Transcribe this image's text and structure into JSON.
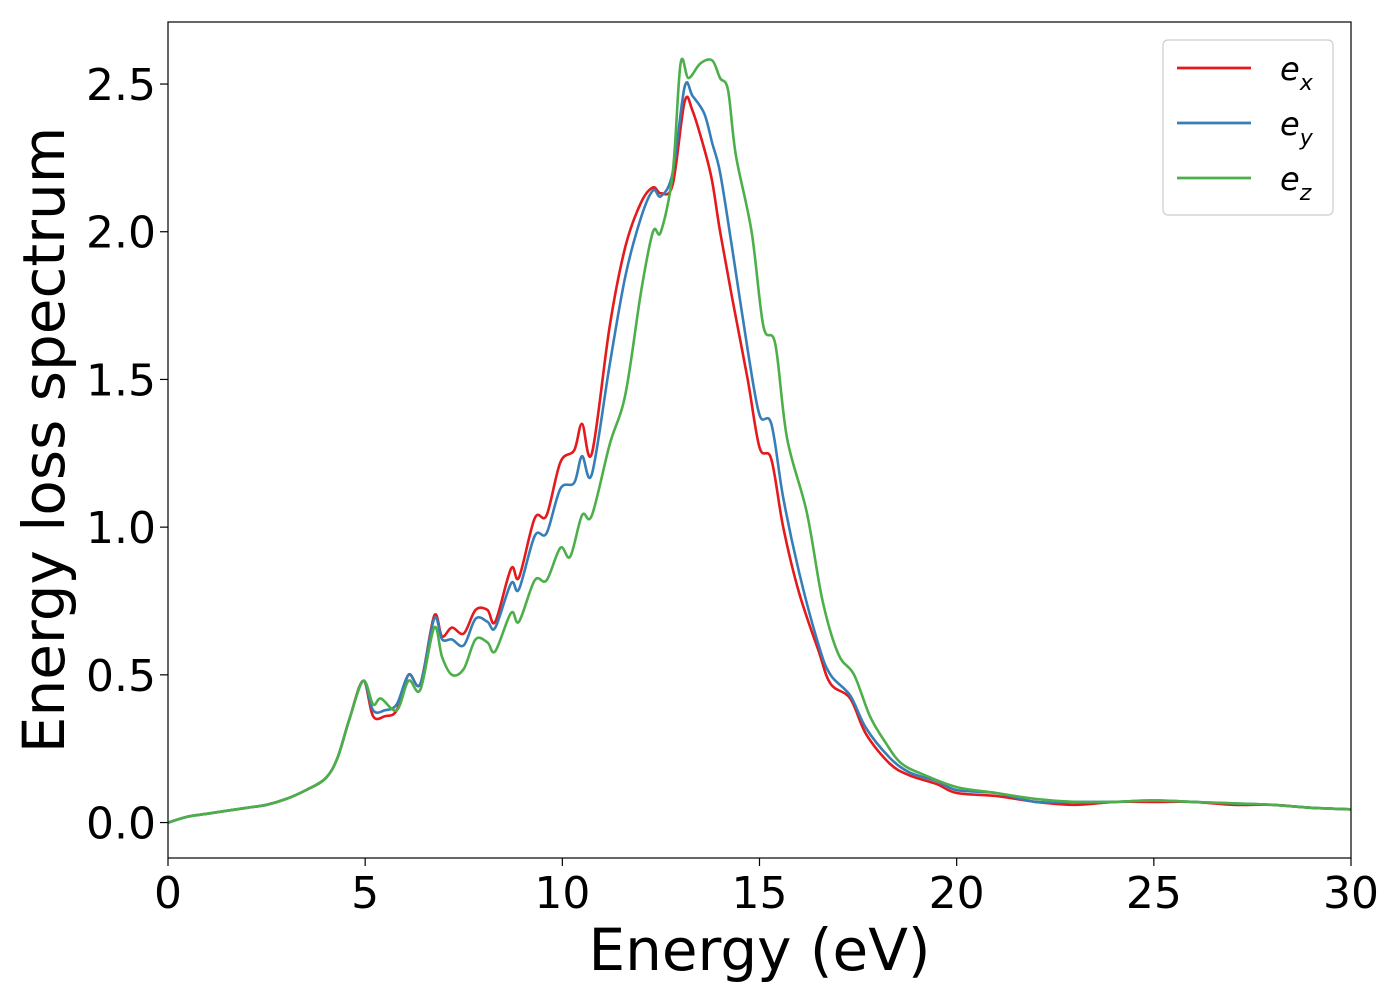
{
  "chart_data": {
    "type": "line",
    "xlabel": "Energy (eV)",
    "ylabel": "Energy loss spectrum",
    "xlim": [
      0,
      30
    ],
    "ylim": [
      -0.12,
      2.71
    ],
    "xticks": [
      0,
      5,
      10,
      15,
      20,
      25,
      30
    ],
    "xtick_labels": [
      "0",
      "5",
      "10",
      "15",
      "20",
      "25",
      "30"
    ],
    "yticks": [
      0.0,
      0.5,
      1.0,
      1.5,
      2.0,
      2.5
    ],
    "ytick_labels": [
      "0.0",
      "0.5",
      "1.0",
      "1.5",
      "2.0",
      "2.5"
    ],
    "grid": false,
    "legend_position": "top-right",
    "series": [
      {
        "name": "e_x",
        "label_base": "e",
        "label_sub": "x",
        "color": "#e41a1c",
        "points": [
          [
            0,
            0
          ],
          [
            0.5,
            0.02
          ],
          [
            1,
            0.03
          ],
          [
            1.5,
            0.04
          ],
          [
            2,
            0.05
          ],
          [
            2.5,
            0.06
          ],
          [
            3,
            0.08
          ],
          [
            3.5,
            0.11
          ],
          [
            4,
            0.15
          ],
          [
            4.3,
            0.22
          ],
          [
            4.6,
            0.35
          ],
          [
            4.95,
            0.48
          ],
          [
            5.2,
            0.36
          ],
          [
            5.5,
            0.36
          ],
          [
            5.8,
            0.38
          ],
          [
            6.1,
            0.5
          ],
          [
            6.4,
            0.47
          ],
          [
            6.75,
            0.7
          ],
          [
            6.95,
            0.63
          ],
          [
            7.2,
            0.66
          ],
          [
            7.5,
            0.64
          ],
          [
            7.8,
            0.72
          ],
          [
            8.1,
            0.72
          ],
          [
            8.3,
            0.68
          ],
          [
            8.7,
            0.86
          ],
          [
            8.9,
            0.83
          ],
          [
            9.3,
            1.03
          ],
          [
            9.6,
            1.04
          ],
          [
            9.95,
            1.22
          ],
          [
            10.3,
            1.26
          ],
          [
            10.5,
            1.35
          ],
          [
            10.75,
            1.25
          ],
          [
            11.2,
            1.68
          ],
          [
            11.6,
            1.95
          ],
          [
            12.0,
            2.1
          ],
          [
            12.3,
            2.15
          ],
          [
            12.5,
            2.13
          ],
          [
            12.8,
            2.16
          ],
          [
            13.1,
            2.44
          ],
          [
            13.3,
            2.41
          ],
          [
            13.6,
            2.28
          ],
          [
            13.8,
            2.17
          ],
          [
            14.0,
            2.0
          ],
          [
            14.3,
            1.78
          ],
          [
            14.7,
            1.5
          ],
          [
            15.0,
            1.27
          ],
          [
            15.3,
            1.23
          ],
          [
            15.6,
            1.0
          ],
          [
            16.0,
            0.78
          ],
          [
            16.5,
            0.58
          ],
          [
            16.8,
            0.47
          ],
          [
            17.3,
            0.42
          ],
          [
            17.7,
            0.3
          ],
          [
            18.3,
            0.2
          ],
          [
            18.8,
            0.16
          ],
          [
            19.5,
            0.13
          ],
          [
            20,
            0.1
          ],
          [
            21,
            0.09
          ],
          [
            22,
            0.07
          ],
          [
            23,
            0.06
          ],
          [
            24,
            0.07
          ],
          [
            25,
            0.07
          ],
          [
            26,
            0.07
          ],
          [
            27,
            0.06
          ],
          [
            28,
            0.06
          ],
          [
            29,
            0.05
          ],
          [
            30,
            0.045
          ]
        ]
      },
      {
        "name": "e_y",
        "label_base": "e",
        "label_sub": "y",
        "color": "#377eb8",
        "points": [
          [
            0,
            0
          ],
          [
            0.5,
            0.02
          ],
          [
            1,
            0.03
          ],
          [
            1.5,
            0.04
          ],
          [
            2,
            0.05
          ],
          [
            2.5,
            0.06
          ],
          [
            3,
            0.08
          ],
          [
            3.5,
            0.11
          ],
          [
            4,
            0.15
          ],
          [
            4.3,
            0.22
          ],
          [
            4.6,
            0.35
          ],
          [
            4.95,
            0.48
          ],
          [
            5.2,
            0.38
          ],
          [
            5.5,
            0.38
          ],
          [
            5.8,
            0.4
          ],
          [
            6.1,
            0.5
          ],
          [
            6.4,
            0.47
          ],
          [
            6.75,
            0.69
          ],
          [
            6.95,
            0.62
          ],
          [
            7.2,
            0.62
          ],
          [
            7.5,
            0.6
          ],
          [
            7.8,
            0.69
          ],
          [
            8.1,
            0.68
          ],
          [
            8.3,
            0.66
          ],
          [
            8.7,
            0.81
          ],
          [
            8.9,
            0.79
          ],
          [
            9.3,
            0.97
          ],
          [
            9.6,
            0.98
          ],
          [
            9.95,
            1.13
          ],
          [
            10.3,
            1.15
          ],
          [
            10.5,
            1.24
          ],
          [
            10.75,
            1.18
          ],
          [
            11.2,
            1.55
          ],
          [
            11.6,
            1.85
          ],
          [
            12.0,
            2.05
          ],
          [
            12.3,
            2.14
          ],
          [
            12.5,
            2.12
          ],
          [
            12.8,
            2.2
          ],
          [
            13.1,
            2.49
          ],
          [
            13.3,
            2.46
          ],
          [
            13.6,
            2.4
          ],
          [
            13.8,
            2.3
          ],
          [
            14.0,
            2.2
          ],
          [
            14.3,
            1.95
          ],
          [
            14.7,
            1.6
          ],
          [
            15.0,
            1.38
          ],
          [
            15.3,
            1.35
          ],
          [
            15.6,
            1.1
          ],
          [
            16.0,
            0.85
          ],
          [
            16.5,
            0.6
          ],
          [
            16.8,
            0.5
          ],
          [
            17.3,
            0.43
          ],
          [
            17.7,
            0.32
          ],
          [
            18.3,
            0.22
          ],
          [
            18.8,
            0.17
          ],
          [
            19.5,
            0.14
          ],
          [
            20,
            0.11
          ],
          [
            21,
            0.1
          ],
          [
            22,
            0.07
          ],
          [
            23,
            0.07
          ],
          [
            24,
            0.07
          ],
          [
            25,
            0.075
          ],
          [
            26,
            0.07
          ],
          [
            27,
            0.065
          ],
          [
            28,
            0.06
          ],
          [
            29,
            0.05
          ],
          [
            30,
            0.045
          ]
        ]
      },
      {
        "name": "e_z",
        "label_base": "e",
        "label_sub": "z",
        "color": "#4daf4a",
        "points": [
          [
            0,
            0
          ],
          [
            0.5,
            0.02
          ],
          [
            1,
            0.03
          ],
          [
            1.5,
            0.04
          ],
          [
            2,
            0.05
          ],
          [
            2.5,
            0.06
          ],
          [
            3,
            0.08
          ],
          [
            3.5,
            0.11
          ],
          [
            4,
            0.15
          ],
          [
            4.3,
            0.22
          ],
          [
            4.6,
            0.35
          ],
          [
            4.95,
            0.48
          ],
          [
            5.2,
            0.4
          ],
          [
            5.4,
            0.42
          ],
          [
            5.8,
            0.38
          ],
          [
            6.1,
            0.48
          ],
          [
            6.4,
            0.45
          ],
          [
            6.75,
            0.66
          ],
          [
            6.95,
            0.56
          ],
          [
            7.2,
            0.5
          ],
          [
            7.5,
            0.52
          ],
          [
            7.8,
            0.62
          ],
          [
            8.1,
            0.61
          ],
          [
            8.3,
            0.58
          ],
          [
            8.7,
            0.71
          ],
          [
            8.9,
            0.68
          ],
          [
            9.3,
            0.82
          ],
          [
            9.6,
            0.82
          ],
          [
            9.95,
            0.93
          ],
          [
            10.2,
            0.9
          ],
          [
            10.5,
            1.04
          ],
          [
            10.75,
            1.04
          ],
          [
            11.2,
            1.28
          ],
          [
            11.6,
            1.45
          ],
          [
            12.0,
            1.8
          ],
          [
            12.3,
            2.0
          ],
          [
            12.5,
            2.0
          ],
          [
            12.8,
            2.2
          ],
          [
            13.0,
            2.57
          ],
          [
            13.2,
            2.52
          ],
          [
            13.5,
            2.57
          ],
          [
            13.8,
            2.58
          ],
          [
            14.0,
            2.52
          ],
          [
            14.2,
            2.48
          ],
          [
            14.4,
            2.26
          ],
          [
            14.8,
            2.0
          ],
          [
            15.1,
            1.68
          ],
          [
            15.4,
            1.62
          ],
          [
            15.7,
            1.3
          ],
          [
            16.2,
            1.05
          ],
          [
            16.6,
            0.75
          ],
          [
            17.0,
            0.57
          ],
          [
            17.4,
            0.5
          ],
          [
            17.8,
            0.36
          ],
          [
            18.2,
            0.27
          ],
          [
            18.6,
            0.2
          ],
          [
            19.2,
            0.16
          ],
          [
            20,
            0.12
          ],
          [
            21,
            0.1
          ],
          [
            22,
            0.08
          ],
          [
            23,
            0.07
          ],
          [
            24,
            0.07
          ],
          [
            25,
            0.075
          ],
          [
            26,
            0.07
          ],
          [
            27,
            0.065
          ],
          [
            28,
            0.06
          ],
          [
            29,
            0.05
          ],
          [
            30,
            0.045
          ]
        ]
      }
    ]
  }
}
